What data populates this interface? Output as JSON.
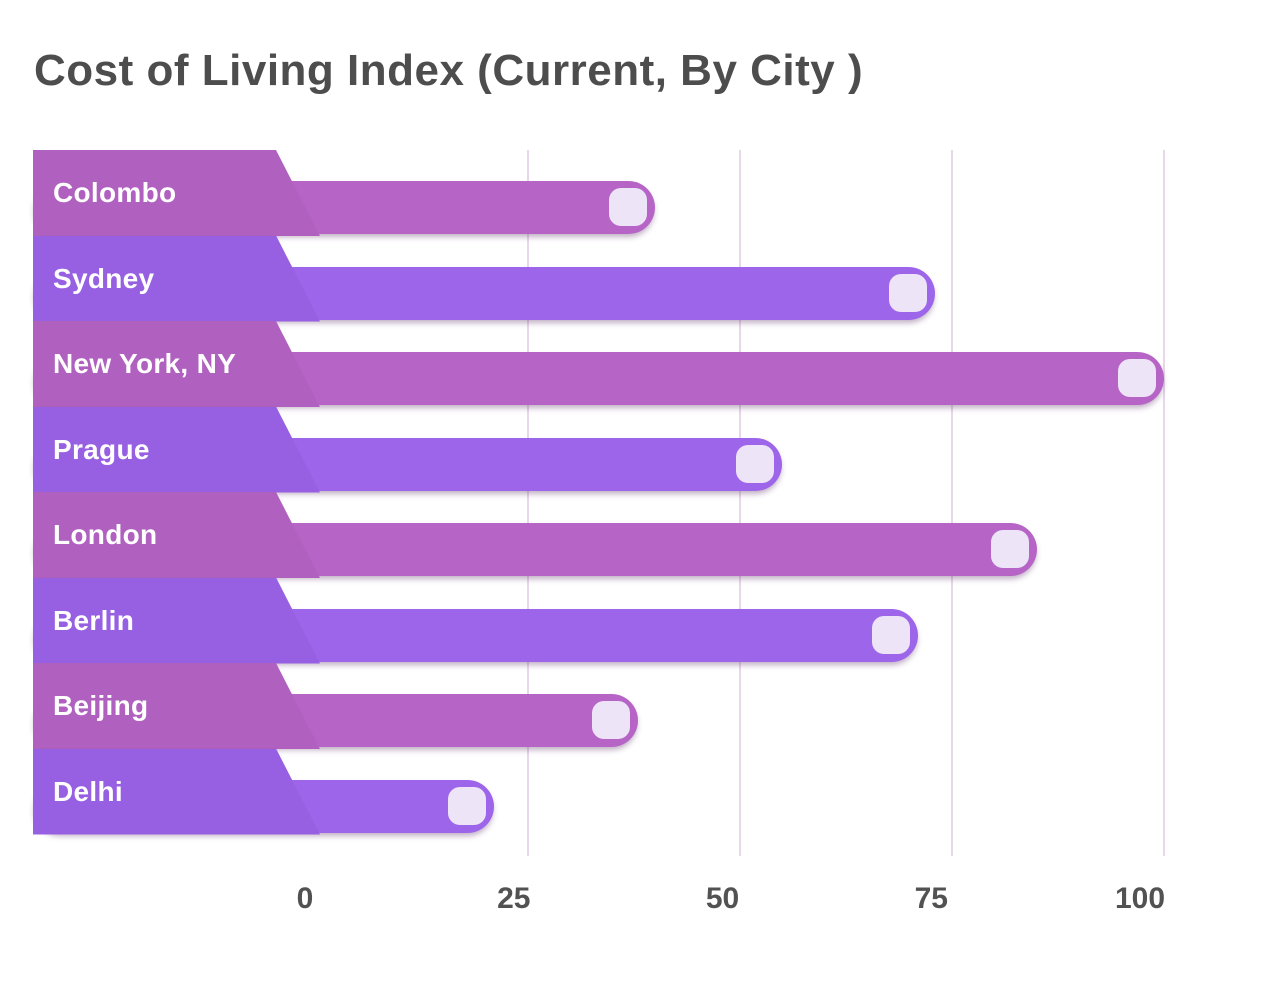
{
  "title": "Cost of Living Index (Current, By City )",
  "chart_data": {
    "type": "bar",
    "orientation": "horizontal",
    "title": "Cost of Living Index (Current, By City )",
    "categories": [
      "Colombo",
      "Sydney",
      "New York, NY",
      "Prague",
      "London",
      "Berlin",
      "Beijing",
      "Delhi"
    ],
    "values": [
      40,
      73,
      100,
      55,
      85,
      71,
      38,
      21
    ],
    "series": [
      {
        "name": "Cost of Living Index (Current)",
        "values": [
          40,
          73,
          100,
          55,
          85,
          71,
          38,
          21
        ]
      }
    ],
    "xlabel": "",
    "ylabel": "",
    "x_axis": {
      "ticks": [
        "0",
        "25",
        "50",
        "75",
        "100"
      ],
      "tick_values": [
        0,
        25,
        50,
        75,
        100
      ],
      "range": [
        0,
        100
      ]
    },
    "grid": "vertical",
    "legend": "none",
    "colors": {
      "bar_pink": "#b665c7",
      "bar_violet": "#9d65ea",
      "block_pink": "#b061c0",
      "block_violet": "#9760e2",
      "end_cap": "#ede4f8",
      "gridline": "#e8d6ea",
      "title_text": "#4d4d4d",
      "tick_text": "#525252",
      "label_text": "#ffffff"
    }
  }
}
